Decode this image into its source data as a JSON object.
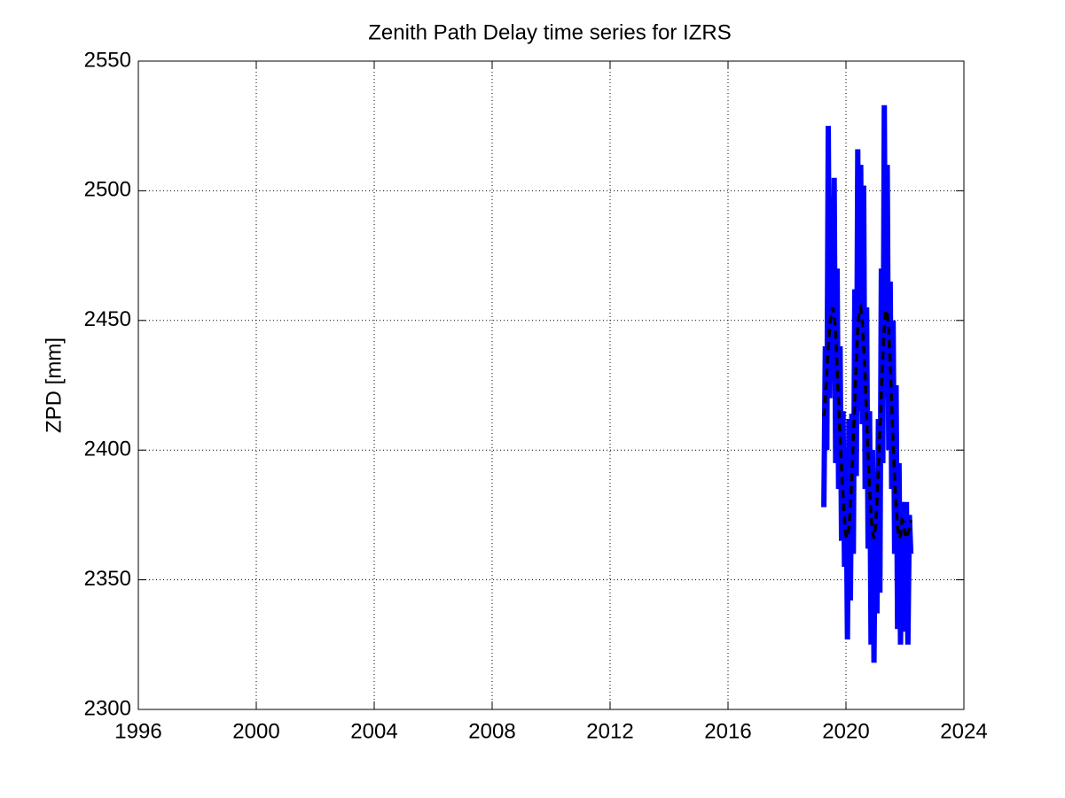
{
  "chart_data": {
    "type": "line",
    "title": "Zenith Path Delay time series for IZRS",
    "y_label": "ZPD [mm]",
    "x": [
      2019.25,
      2019.3,
      2019.35,
      2019.4,
      2019.45,
      2019.5,
      2019.55,
      2019.6,
      2019.65,
      2019.7,
      2019.75,
      2019.8,
      2019.85,
      2019.9,
      2019.95,
      2020,
      2020.05,
      2020.1,
      2020.15,
      2020.2,
      2020.25,
      2020.3,
      2020.35,
      2020.4,
      2020.45,
      2020.5,
      2020.55,
      2020.6,
      2020.65,
      2020.7,
      2020.75,
      2020.8,
      2020.85,
      2020.9,
      2020.95,
      2021,
      2021.05,
      2021.1,
      2021.15,
      2021.2,
      2021.25,
      2021.3,
      2021.35,
      2021.4,
      2021.45,
      2021.5,
      2021.55,
      2021.6,
      2021.65,
      2021.7,
      2021.75,
      2021.8,
      2021.85,
      2021.9,
      2021.95,
      2022,
      2022.05,
      2022.1,
      2022.15,
      2022.2
    ],
    "series": [
      {
        "color": "#0000ff",
        "linestyle": "solid",
        "values": [
          2378,
          2440,
          2400,
          2525,
          2420,
          2497,
          2430,
          2505,
          2395,
          2470,
          2385,
          2440,
          2365,
          2415,
          2355,
          2398,
          2327,
          2412,
          2342,
          2414,
          2360,
          2462,
          2390,
          2516,
          2415,
          2510,
          2410,
          2502,
          2385,
          2455,
          2362,
          2415,
          2325,
          2400,
          2318,
          2392,
          2337,
          2412,
          2345,
          2470,
          2395,
          2533,
          2420,
          2510,
          2400,
          2465,
          2385,
          2450,
          2360,
          2425,
          2331,
          2395,
          2325,
          2380,
          2360,
          2330,
          2380,
          2325,
          2375,
          2360
        ]
      },
      {
        "color": "#000000",
        "linestyle": "dashed",
        "values": [
          2413,
          2420,
          2430,
          2440,
          2448,
          2453,
          2455,
          2452,
          2445,
          2432,
          2418,
          2405,
          2393,
          2382,
          2373,
          2367,
          2366,
          2370,
          2378,
          2390,
          2405,
          2420,
          2435,
          2447,
          2454,
          2455,
          2450,
          2440,
          2428,
          2413,
          2398,
          2385,
          2375,
          2368,
          2366,
          2370,
          2380,
          2393,
          2408,
          2423,
          2437,
          2448,
          2454,
          2453,
          2446,
          2433,
          2418,
          2402,
          2389,
          2378,
          2370,
          2366,
          2367,
          2373,
          2372,
          2368,
          2366,
          2368,
          2370,
          2373
        ]
      }
    ],
    "xlim": [
      1996,
      2024
    ],
    "xticks": [
      1996,
      2000,
      2004,
      2008,
      2012,
      2016,
      2020,
      2024
    ],
    "ylim": [
      2300,
      2550
    ],
    "yticks": [
      2300,
      2350,
      2400,
      2450,
      2500,
      2550
    ],
    "grid": true
  }
}
